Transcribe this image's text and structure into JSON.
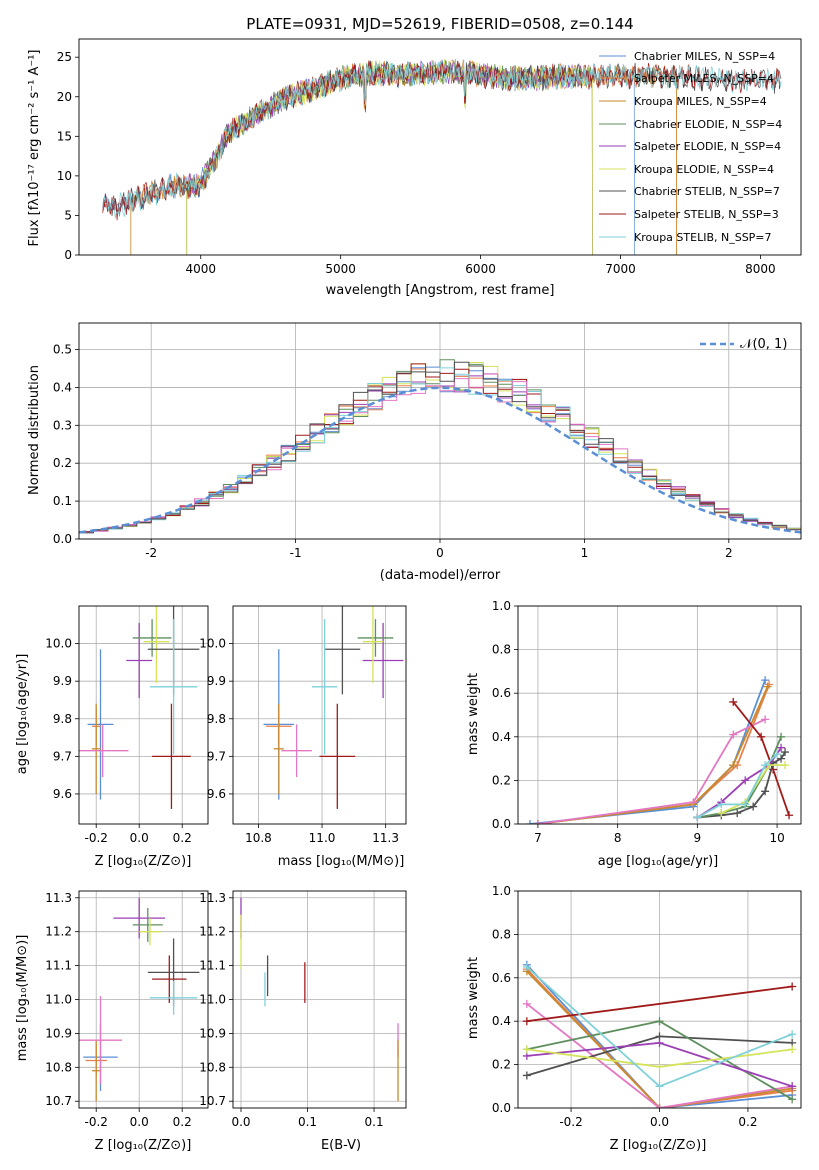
{
  "chart_data": [
    {
      "type": "line",
      "id": "spectrum",
      "title": "PLATE=0931, MJD=52619, FIBERID=0508, z=0.144",
      "xlabel": "wavelength [Angstrom, rest frame]",
      "ylabel": "Flux [fλ10⁻¹⁷ erg cm⁻² s⁻¹ A⁻¹]",
      "xlim": [
        3130,
        8290
      ],
      "ylim": [
        0,
        27.3
      ],
      "xticks": [
        4000,
        5000,
        6000,
        7000,
        8000
      ],
      "yticks": [
        0,
        5,
        10,
        15,
        20,
        25
      ],
      "grid": false,
      "legend_position": "right",
      "continuum": {
        "x": [
          3300,
          3400,
          3500,
          3600,
          3700,
          3800,
          3900,
          4000,
          4100,
          4200,
          4400,
          4600,
          4800,
          5000,
          5200,
          5400,
          5600,
          5800,
          6000,
          6200,
          6400,
          6600,
          6800,
          7000,
          7200,
          7400,
          7600,
          7800,
          8000,
          8150
        ],
        "y": [
          6.5,
          6.0,
          6.8,
          7.5,
          8.0,
          8.8,
          8.6,
          9.0,
          12.0,
          15.5,
          17.8,
          19.8,
          21.0,
          22.3,
          23.0,
          22.8,
          23.0,
          23.3,
          22.8,
          22.3,
          22.4,
          22.6,
          22.5,
          22.6,
          22.8,
          22.5,
          22.3,
          22.0,
          22.2,
          22.0
        ]
      },
      "series": [
        {
          "name": "Chabrier MILES, N_SSP=4",
          "color": "#5a8fd6",
          "xrange": [
            3300,
            7100
          ]
        },
        {
          "name": "Salpeter MILES, N_SSP=4",
          "color": "#e8804a",
          "xrange": [
            3500,
            7400
          ]
        },
        {
          "name": "Kroupa MILES, N_SSP=4",
          "color": "#c88a2e",
          "xrange": [
            3500,
            7400
          ]
        },
        {
          "name": "Chabrier ELODIE, N_SSP=4",
          "color": "#5f8f5f",
          "xrange": [
            3900,
            6800
          ]
        },
        {
          "name": "Salpeter ELODIE, N_SSP=4",
          "color": "#9b3fb5",
          "xrange": [
            3900,
            6800
          ]
        },
        {
          "name": "Kroupa ELODIE, N_SSP=4",
          "color": "#d4e35a",
          "xrange": [
            3900,
            6800
          ]
        },
        {
          "name": "Chabrier STELIB, N_SSP=7",
          "color": "#505050",
          "xrange": [
            3300,
            8150
          ]
        },
        {
          "name": "Salpeter STELIB, N_SSP=3",
          "color": "#a01a1a",
          "xrange": [
            3300,
            8150
          ]
        },
        {
          "name": "Kroupa STELIB, N_SSP=7",
          "color": "#7fd1d9",
          "xrange": [
            3300,
            8150
          ]
        }
      ]
    },
    {
      "type": "line",
      "id": "residuals",
      "xlabel": "(data-model)/error",
      "ylabel": "Normed distribution",
      "xlim": [
        -2.5,
        2.5
      ],
      "ylim": [
        0,
        0.57
      ],
      "xticks": [
        -2,
        -1,
        0,
        1,
        2
      ],
      "yticks": [
        0.0,
        0.1,
        0.2,
        0.3,
        0.4,
        0.5
      ],
      "grid": true,
      "legend": "𝒩(0, 1)",
      "gaussian": {
        "mu": 0,
        "sigma": 1,
        "color": "#5a8fd6"
      },
      "bin_width": 0.1,
      "bin_start": -2.5,
      "histogram_colors": [
        "#5a8fd6",
        "#e8804a",
        "#5f8f5f",
        "#9b3fb5",
        "#d4e35a",
        "#a01a1a",
        "#7fd1d9",
        "#e377c2",
        "#505050"
      ]
    },
    {
      "type": "scatter",
      "id": "age-vs-z",
      "xlabel": "Z [log₁₀(Z/Z⊙)]",
      "ylabel": "age  [log₁₀(age/yr)]",
      "xlim": [
        -0.28,
        0.32
      ],
      "ylim": [
        9.52,
        10.1
      ],
      "xticks": [
        -0.2,
        0.0,
        0.2
      ],
      "yticks": [
        9.6,
        9.7,
        9.8,
        9.9,
        10.0
      ],
      "grid": true,
      "points": [
        {
          "color": "#5a8fd6",
          "x": -0.18,
          "xerr": 0.06,
          "y": 9.785,
          "yerr": 0.2
        },
        {
          "color": "#e8804a",
          "x": -0.2,
          "xerr": 0.02,
          "y": 9.78,
          "yerr": 0.05
        },
        {
          "color": "#c88a2e",
          "x": -0.2,
          "xerr": 0.02,
          "y": 9.72,
          "yerr": 0.12
        },
        {
          "color": "#e377c2",
          "x": -0.17,
          "xerr": 0.12,
          "y": 9.715,
          "yerr": 0.07
        },
        {
          "color": "#a01a1a",
          "x": 0.15,
          "xerr": 0.09,
          "y": 9.7,
          "yerr": 0.14
        },
        {
          "color": "#9b3fb5",
          "x": 0.0,
          "xerr": 0.06,
          "y": 9.955,
          "yerr": 0.1
        },
        {
          "color": "#5f8f5f",
          "x": 0.06,
          "xerr": 0.09,
          "y": 10.015,
          "yerr": 0.05
        },
        {
          "color": "#d4e35a",
          "x": 0.08,
          "xerr": 0.06,
          "y": 10.005,
          "yerr": 0.11
        },
        {
          "color": "#505050",
          "x": 0.16,
          "xerr": 0.12,
          "y": 9.985,
          "yerr": 0.12
        },
        {
          "color": "#7fd1d9",
          "x": 0.16,
          "xerr": 0.11,
          "y": 9.885,
          "yerr": 0.18
        }
      ]
    },
    {
      "type": "scatter",
      "id": "age-vs-mass",
      "xlabel": "mass [log₁₀(M/M⊙)]",
      "xlim": [
        10.65,
        11.33
      ],
      "ylim": [
        9.52,
        10.1
      ],
      "xticks": [
        10.75,
        11.0,
        11.25
      ],
      "yticks": [
        9.6,
        9.7,
        9.8,
        9.9,
        10.0
      ],
      "grid": true,
      "points": [
        {
          "color": "#5a8fd6",
          "x": 10.83,
          "xerr": 0.06,
          "y": 9.785,
          "yerr": 0.2
        },
        {
          "color": "#e8804a",
          "x": 10.83,
          "xerr": 0.05,
          "y": 9.78,
          "yerr": 0.05
        },
        {
          "color": "#c88a2e",
          "x": 10.83,
          "xerr": 0.02,
          "y": 9.72,
          "yerr": 0.12
        },
        {
          "color": "#e377c2",
          "x": 10.9,
          "xerr": 0.06,
          "y": 9.715,
          "yerr": 0.07
        },
        {
          "color": "#a01a1a",
          "x": 11.06,
          "xerr": 0.07,
          "y": 9.7,
          "yerr": 0.14
        },
        {
          "color": "#9b3fb5",
          "x": 11.24,
          "xerr": 0.08,
          "y": 9.955,
          "yerr": 0.1
        },
        {
          "color": "#5f8f5f",
          "x": 11.21,
          "xerr": 0.07,
          "y": 10.015,
          "yerr": 0.05
        },
        {
          "color": "#d4e35a",
          "x": 11.2,
          "xerr": 0.04,
          "y": 10.005,
          "yerr": 0.11
        },
        {
          "color": "#505050",
          "x": 11.08,
          "xerr": 0.07,
          "y": 9.985,
          "yerr": 0.12
        },
        {
          "color": "#7fd1d9",
          "x": 11.01,
          "xerr": 0.05,
          "y": 9.885,
          "yerr": 0.18
        }
      ]
    },
    {
      "type": "line",
      "id": "weight-vs-age",
      "xlabel": "age  [log₁₀(age/yr)]",
      "ylabel": "mass weight",
      "xlim": [
        6.75,
        10.3
      ],
      "ylim": [
        0,
        1.0
      ],
      "xticks": [
        7,
        8,
        9,
        10
      ],
      "yticks": [
        0.0,
        0.2,
        0.4,
        0.6,
        0.8,
        1.0
      ],
      "grid": true,
      "series": [
        {
          "color": "#5a8fd6",
          "x": [
            6.9,
            8.95,
            9.45,
            9.85
          ],
          "y": [
            0.0,
            0.08,
            0.27,
            0.66
          ]
        },
        {
          "color": "#e8804a",
          "x": [
            7.0,
            8.95,
            9.5,
            9.9
          ],
          "y": [
            0.0,
            0.09,
            0.27,
            0.64
          ]
        },
        {
          "color": "#c88a2e",
          "x": [
            7.0,
            8.95,
            9.45,
            9.88
          ],
          "y": [
            0.0,
            0.09,
            0.27,
            0.63
          ]
        },
        {
          "color": "#e377c2",
          "x": [
            7.0,
            8.95,
            9.45,
            9.85
          ],
          "y": [
            0.0,
            0.1,
            0.41,
            0.48
          ]
        },
        {
          "color": "#a01a1a",
          "x": [
            9.45,
            9.8,
            9.95,
            10.15
          ],
          "y": [
            0.56,
            0.4,
            0.25,
            0.04
          ]
        },
        {
          "color": "#505050",
          "x": [
            9.0,
            9.3,
            9.5,
            9.7,
            9.85,
            9.95,
            10.05,
            10.1
          ],
          "y": [
            0.03,
            0.04,
            0.05,
            0.08,
            0.15,
            0.28,
            0.3,
            0.33
          ]
        },
        {
          "color": "#5f8f5f",
          "x": [
            9.0,
            9.3,
            9.6,
            9.9,
            10.05
          ],
          "y": [
            0.03,
            0.05,
            0.08,
            0.27,
            0.4
          ]
        },
        {
          "color": "#9b3fb5",
          "x": [
            9.0,
            9.3,
            9.6,
            9.9,
            10.05
          ],
          "y": [
            0.03,
            0.1,
            0.2,
            0.27,
            0.35
          ]
        },
        {
          "color": "#d4e35a",
          "x": [
            9.3,
            9.6,
            9.9,
            10.1
          ],
          "y": [
            0.05,
            0.1,
            0.27,
            0.27
          ]
        },
        {
          "color": "#7fd1d9",
          "x": [
            9.0,
            9.3,
            9.6,
            9.85,
            10.0
          ],
          "y": [
            0.03,
            0.09,
            0.09,
            0.27,
            0.32
          ]
        }
      ]
    },
    {
      "type": "scatter",
      "id": "mass-vs-z",
      "xlabel": "Z [log₁₀(Z/Z⊙)]",
      "ylabel": "mass [log₁₀(M/M⊙)]",
      "xlim": [
        -0.28,
        0.32
      ],
      "ylim": [
        10.68,
        11.32
      ],
      "xticks": [
        -0.2,
        0.0,
        0.2
      ],
      "yticks": [
        10.7,
        10.8,
        10.9,
        11.0,
        11.1,
        11.2,
        11.3
      ],
      "grid": true,
      "points": [
        {
          "color": "#5a8fd6",
          "x": -0.18,
          "xerr": 0.08,
          "y": 10.83,
          "yerr": 0.1
        },
        {
          "color": "#e8804a",
          "x": -0.2,
          "xerr": 0.05,
          "y": 10.82,
          "yerr": 0.05
        },
        {
          "color": "#c88a2e",
          "x": -0.2,
          "xerr": 0.02,
          "y": 10.79,
          "yerr": 0.09
        },
        {
          "color": "#e377c2",
          "x": -0.18,
          "xerr": 0.1,
          "y": 10.88,
          "yerr": 0.13
        },
        {
          "color": "#a01a1a",
          "x": 0.14,
          "xerr": 0.08,
          "y": 11.06,
          "yerr": 0.07
        },
        {
          "color": "#9b3fb5",
          "x": 0.0,
          "xerr": 0.12,
          "y": 11.24,
          "yerr": 0.06
        },
        {
          "color": "#5f8f5f",
          "x": 0.04,
          "xerr": 0.07,
          "y": 11.22,
          "yerr": 0.05
        },
        {
          "color": "#d4e35a",
          "x": 0.05,
          "xerr": 0.05,
          "y": 11.2,
          "yerr": 0.04
        },
        {
          "color": "#505050",
          "x": 0.16,
          "xerr": 0.12,
          "y": 11.08,
          "yerr": 0.1
        },
        {
          "color": "#7fd1d9",
          "x": 0.16,
          "xerr": 0.11,
          "y": 11.005,
          "yerr": 0.05
        }
      ]
    },
    {
      "type": "scatter",
      "id": "mass-vs-ebv",
      "xlabel": "E(B-V)",
      "xlim": [
        -0.006,
        0.124
      ],
      "ylim": [
        10.68,
        11.32
      ],
      "xticks": [
        0.0,
        0.05,
        0.1
      ],
      "yticks": [
        10.7,
        10.8,
        10.9,
        11.0,
        11.1,
        11.2,
        11.3
      ],
      "grid": true,
      "points": [
        {
          "color": "#9b3fb5",
          "x": 0.0,
          "y": 11.24,
          "yerr": 0.06
        },
        {
          "color": "#d4e35a",
          "x": 0.0,
          "y": 11.17,
          "yerr": 0.08
        },
        {
          "color": "#505050",
          "x": 0.02,
          "y": 11.07,
          "yerr": 0.06
        },
        {
          "color": "#7fd1d9",
          "x": 0.018,
          "y": 11.03,
          "yerr": 0.05
        },
        {
          "color": "#a01a1a",
          "x": 0.048,
          "y": 11.05,
          "yerr": 0.06
        },
        {
          "color": "#e377c2",
          "x": 0.118,
          "y": 10.88,
          "yerr": 0.05
        },
        {
          "color": "#c88a2e",
          "x": 0.118,
          "y": 10.79,
          "yerr": 0.09
        }
      ]
    },
    {
      "type": "line",
      "id": "weight-vs-z",
      "xlabel": "Z [log₁₀(Z/Z⊙)]",
      "ylabel": "mass weight",
      "xlim": [
        -0.32,
        0.32
      ],
      "ylim": [
        0,
        1.0
      ],
      "xticks": [
        -0.2,
        0.0,
        0.2
      ],
      "yticks": [
        0.0,
        0.2,
        0.4,
        0.6,
        0.8,
        1.0
      ],
      "grid": true,
      "series": [
        {
          "color": "#5a8fd6",
          "x": [
            -0.3,
            0.0,
            0.3
          ],
          "y": [
            0.66,
            0.0,
            0.06
          ]
        },
        {
          "color": "#e8804a",
          "x": [
            -0.3,
            0.0,
            0.3
          ],
          "y": [
            0.64,
            0.0,
            0.08
          ]
        },
        {
          "color": "#c88a2e",
          "x": [
            -0.3,
            0.0,
            0.3
          ],
          "y": [
            0.63,
            0.0,
            0.09
          ]
        },
        {
          "color": "#e377c2",
          "x": [
            -0.3,
            0.0,
            0.3
          ],
          "y": [
            0.48,
            0.0,
            0.1
          ]
        },
        {
          "color": "#a01a1a",
          "x": [
            -0.3,
            0.3
          ],
          "y": [
            0.4,
            0.56
          ]
        },
        {
          "color": "#505050",
          "x": [
            -0.3,
            0.0,
            0.3
          ],
          "y": [
            0.15,
            0.33,
            0.3
          ]
        },
        {
          "color": "#5f8f5f",
          "x": [
            -0.3,
            0.0,
            0.3
          ],
          "y": [
            0.27,
            0.4,
            0.04
          ]
        },
        {
          "color": "#9b3fb5",
          "x": [
            -0.3,
            0.0,
            0.3
          ],
          "y": [
            0.24,
            0.3,
            0.1
          ]
        },
        {
          "color": "#d4e35a",
          "x": [
            -0.3,
            0.0,
            0.3
          ],
          "y": [
            0.27,
            0.19,
            0.27
          ]
        },
        {
          "color": "#7fd1d9",
          "x": [
            -0.3,
            0.0,
            0.3
          ],
          "y": [
            0.65,
            0.1,
            0.34
          ]
        }
      ]
    }
  ]
}
